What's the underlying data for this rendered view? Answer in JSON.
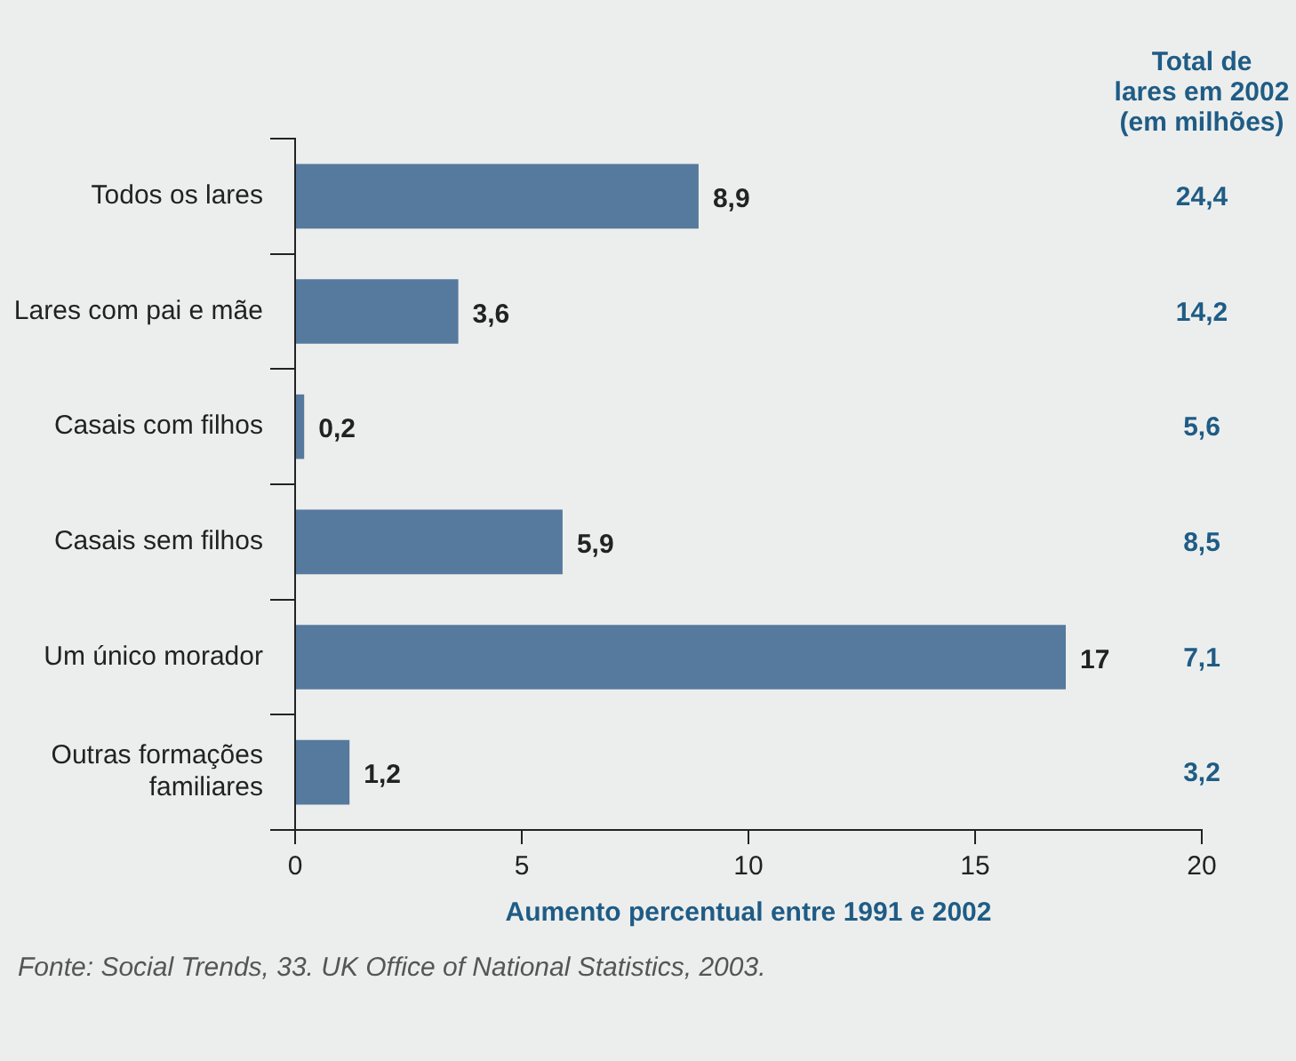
{
  "chart_data": {
    "type": "bar",
    "orientation": "horizontal",
    "categories": [
      "Todos os lares",
      "Lares com pai e mãe",
      "Casais com filhos",
      "Casais sem filhos",
      "Um único morador",
      "Outras formações familiares"
    ],
    "values": [
      8.9,
      3.6,
      0.2,
      5.9,
      17,
      1.2
    ],
    "value_labels": [
      "8,9",
      "3,6",
      "0,2",
      "5,9",
      "17",
      "1,2"
    ],
    "color": "#56799e",
    "xlim": [
      0,
      20
    ],
    "xticks": [
      0,
      5,
      10,
      15,
      20
    ],
    "xlabel": "Aumento percentual entre 1991 e 2002",
    "grid": false,
    "legend": false,
    "annotations": [
      "Total de\nlares em 2002\n(em milhões)",
      "24,4",
      "14,2",
      "5,6",
      "8,5",
      "7,1",
      "3,2",
      "Fonte: Social Trends, 33. UK Office of National Statistics, 2003."
    ]
  }
}
